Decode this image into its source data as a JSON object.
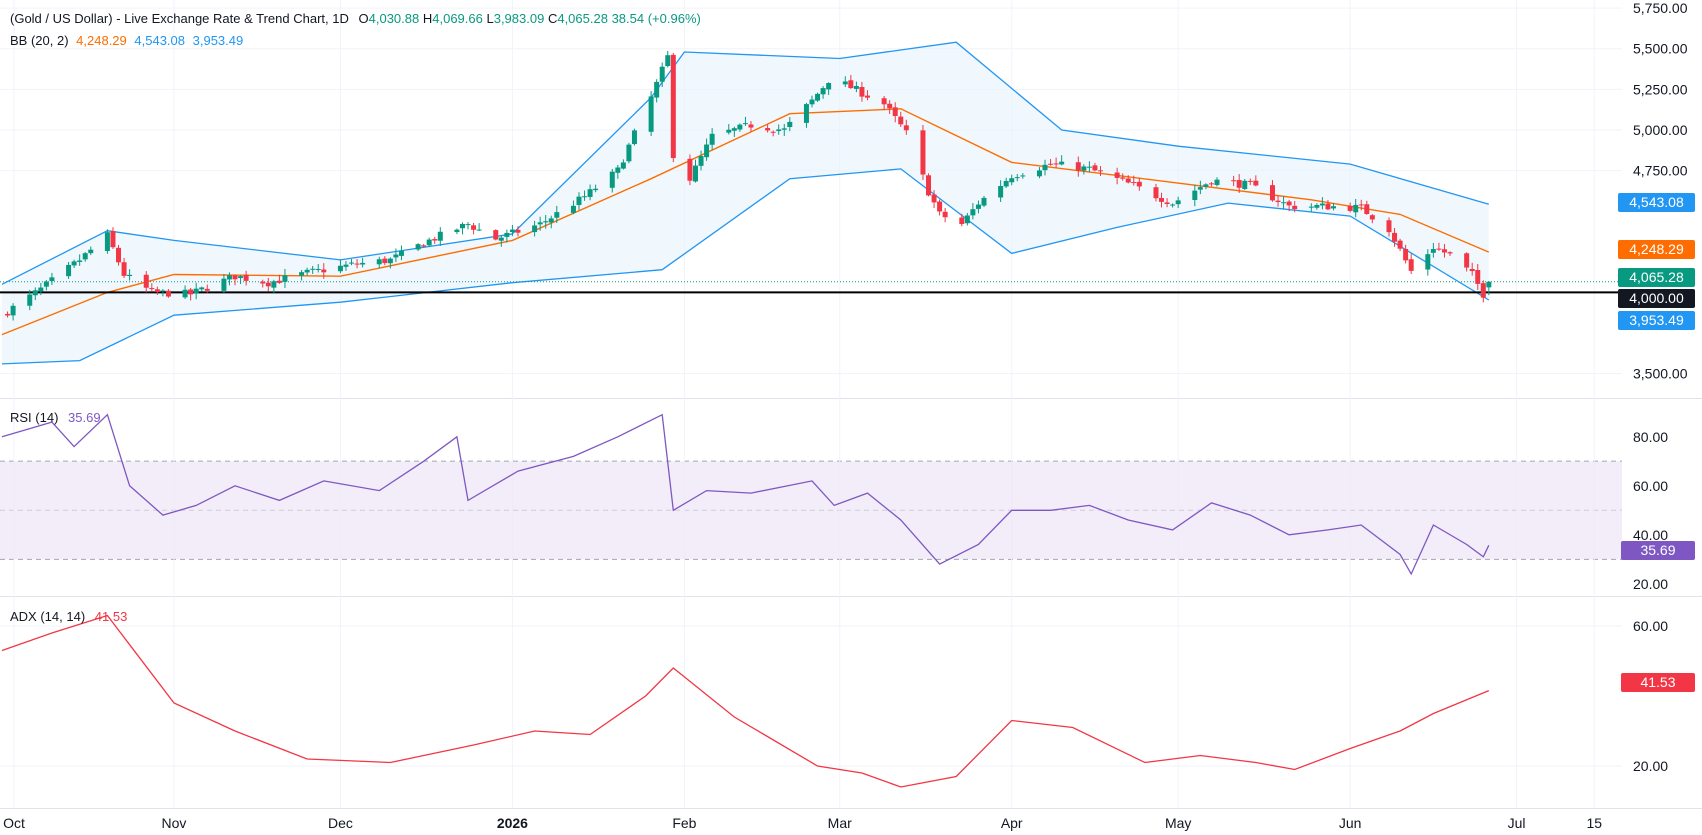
{
  "header": {
    "symbol_title": "(Gold / US Dollar) - Live Exchange Rate & Trend Chart, 1D",
    "ohlc": {
      "o_label": "O",
      "o": "4,030.88",
      "h_label": "H",
      "h": "4,069.66",
      "l_label": "L",
      "l": "3,983.09",
      "c_label": "C",
      "c": "4,065.28",
      "change": "38.54 (+0.96%)"
    },
    "bb_label": "BB (20, 2)",
    "bb_values": {
      "basis": "4,248.29",
      "upper": "4,543.08",
      "lower": "3,953.49"
    },
    "rsi_label": "RSI (14)",
    "rsi_value": "35.69",
    "adx_label": "ADX (14, 14)",
    "adx_value": "41.53"
  },
  "colors": {
    "up": "#089981",
    "down": "#f23645",
    "basis": "#ff6d00",
    "band": "#2196f3",
    "band_fill": "#e3f2fd",
    "rsi": "#7e57c2",
    "rsi_fill": "#ede7f6",
    "adx": "#f23645",
    "axis_text": "#131722",
    "grid": "#f0f3fa",
    "level": "#000000"
  },
  "price_axis": {
    "ticks": [
      "5,750.00",
      "5,500.00",
      "5,250.00",
      "5,000.00",
      "4,750.00",
      "3,500.00"
    ]
  },
  "rsi_axis": {
    "ticks": [
      "80.00",
      "60.00",
      "40.00",
      "20.00"
    ]
  },
  "adx_axis": {
    "ticks": [
      "60.00",
      "20.00"
    ]
  },
  "time_axis": {
    "labels": [
      {
        "label": "Oct",
        "bold": false
      },
      {
        "label": "Nov",
        "bold": false
      },
      {
        "label": "Dec",
        "bold": false
      },
      {
        "label": "2026",
        "bold": true
      },
      {
        "label": "Feb",
        "bold": false
      },
      {
        "label": "Mar",
        "bold": false
      },
      {
        "label": "Apr",
        "bold": false
      },
      {
        "label": "May",
        "bold": false
      },
      {
        "label": "Jun",
        "bold": false
      },
      {
        "label": "Jul",
        "bold": false
      },
      {
        "label": "15",
        "bold": false
      }
    ]
  },
  "price_badges": [
    {
      "label": "4,543.08",
      "color": "#2196f3"
    },
    {
      "label": "4,248.29",
      "color": "#ff6d00"
    },
    {
      "label": "4,065.28",
      "color": "#089981"
    },
    {
      "label": "4,000.00",
      "color": "#131722"
    },
    {
      "label": "3,953.49",
      "color": "#2196f3"
    }
  ],
  "chart_data": [
    {
      "type": "candlestick",
      "title": "(Gold / US Dollar) - Live Exchange Rate & Trend Chart, 1D",
      "x_range": [
        "2025-10-01",
        "2026-07-20"
      ],
      "ylim": [
        3350,
        5800
      ],
      "horizontal_level": 4000,
      "last_candle": {
        "open": 4030.88,
        "high": 4069.66,
        "low": 3983.09,
        "close": 4065.28
      },
      "close_series": [
        [
          "2025-10-01",
          3860
        ],
        [
          "2025-10-08",
          4020
        ],
        [
          "2025-10-15",
          4200
        ],
        [
          "2025-10-20",
          4350
        ],
        [
          "2025-10-23",
          4110
        ],
        [
          "2025-10-28",
          4000
        ],
        [
          "2025-11-04",
          3990
        ],
        [
          "2025-11-12",
          4100
        ],
        [
          "2025-11-18",
          4060
        ],
        [
          "2025-11-25",
          4120
        ],
        [
          "2025-12-03",
          4170
        ],
        [
          "2025-12-10",
          4200
        ],
        [
          "2025-12-17",
          4320
        ],
        [
          "2025-12-24",
          4420
        ],
        [
          "2025-12-29",
          4330
        ],
        [
          "2026-01-06",
          4420
        ],
        [
          "2026-01-14",
          4590
        ],
        [
          "2026-01-20",
          4750
        ],
        [
          "2026-01-26",
          5200
        ],
        [
          "2026-01-29",
          5450
        ],
        [
          "2026-01-30",
          4850
        ],
        [
          "2026-02-02",
          4700
        ],
        [
          "2026-02-06",
          4960
        ],
        [
          "2026-02-13",
          5030
        ],
        [
          "2026-02-19",
          5000
        ],
        [
          "2026-02-24",
          5180
        ],
        [
          "2026-02-28",
          5350
        ],
        [
          "2026-03-02",
          5280
        ],
        [
          "2026-03-09",
          5160
        ],
        [
          "2026-03-13",
          4980
        ],
        [
          "2026-03-17",
          4620
        ],
        [
          "2026-03-19",
          4480
        ],
        [
          "2026-03-23",
          4420
        ],
        [
          "2026-03-26",
          4550
        ],
        [
          "2026-04-01",
          4720
        ],
        [
          "2026-04-08",
          4790
        ],
        [
          "2026-04-15",
          4760
        ],
        [
          "2026-04-22",
          4670
        ],
        [
          "2026-04-30",
          4550
        ],
        [
          "2026-05-07",
          4690
        ],
        [
          "2026-05-14",
          4660
        ],
        [
          "2026-05-21",
          4530
        ],
        [
          "2026-05-28",
          4530
        ],
        [
          "2026-06-03",
          4520
        ],
        [
          "2026-06-08",
          4390
        ],
        [
          "2026-06-12",
          4130
        ],
        [
          "2026-06-16",
          4280
        ],
        [
          "2026-06-19",
          4230
        ],
        [
          "2026-06-23",
          4110
        ],
        [
          "2026-06-25",
          3990
        ],
        [
          "2026-06-26",
          4065.28
        ]
      ],
      "series": [
        {
          "name": "BB basis",
          "values": [
            [
              "2025-10-01",
              3740
            ],
            [
              "2025-10-20",
              4000
            ],
            [
              "2025-11-01",
              4110
            ],
            [
              "2025-12-01",
              4100
            ],
            [
              "2026-01-01",
              4320
            ],
            [
              "2026-01-26",
              4700
            ],
            [
              "2026-02-20",
              5100
            ],
            [
              "2026-03-12",
              5130
            ],
            [
              "2026-04-01",
              4800
            ],
            [
              "2026-04-20",
              4720
            ],
            [
              "2026-05-25",
              4570
            ],
            [
              "2026-06-10",
              4480
            ],
            [
              "2026-06-26",
              4248.29
            ]
          ]
        },
        {
          "name": "BB upper",
          "values": [
            [
              "2025-10-01",
              4050
            ],
            [
              "2025-10-20",
              4380
            ],
            [
              "2025-11-01",
              4320
            ],
            [
              "2025-12-01",
              4200
            ],
            [
              "2026-01-01",
              4360
            ],
            [
              "2026-01-26",
              5200
            ],
            [
              "2026-02-01",
              5480
            ],
            [
              "2026-03-01",
              5440
            ],
            [
              "2026-03-22",
              5540
            ],
            [
              "2026-04-10",
              5000
            ],
            [
              "2026-05-01",
              4900
            ],
            [
              "2026-06-01",
              4790
            ],
            [
              "2026-06-26",
              4543.08
            ]
          ]
        },
        {
          "name": "BB lower",
          "values": [
            [
              "2025-10-01",
              3560
            ],
            [
              "2025-10-15",
              3580
            ],
            [
              "2025-11-01",
              3860
            ],
            [
              "2025-12-01",
              3940
            ],
            [
              "2026-01-01",
              4060
            ],
            [
              "2026-01-28",
              4140
            ],
            [
              "2026-02-20",
              4700
            ],
            [
              "2026-03-12",
              4760
            ],
            [
              "2026-04-01",
              4240
            ],
            [
              "2026-04-20",
              4400
            ],
            [
              "2026-05-10",
              4550
            ],
            [
              "2026-06-01",
              4470
            ],
            [
              "2026-06-26",
              3953.49
            ]
          ]
        }
      ]
    },
    {
      "type": "line",
      "title": "RSI (14)",
      "ylim": [
        15,
        95
      ],
      "levels": [
        70,
        50,
        30
      ],
      "series": [
        {
          "name": "RSI (14)",
          "values": [
            [
              "2025-10-01",
              80
            ],
            [
              "2025-10-10",
              86
            ],
            [
              "2025-10-14",
              76
            ],
            [
              "2025-10-20",
              89
            ],
            [
              "2025-10-24",
              60
            ],
            [
              "2025-10-30",
              48
            ],
            [
              "2025-11-05",
              52
            ],
            [
              "2025-11-12",
              60
            ],
            [
              "2025-11-20",
              54
            ],
            [
              "2025-11-28",
              62
            ],
            [
              "2025-12-08",
              58
            ],
            [
              "2025-12-16",
              70
            ],
            [
              "2025-12-22",
              80
            ],
            [
              "2025-12-24",
              54
            ],
            [
              "2026-01-02",
              66
            ],
            [
              "2026-01-12",
              72
            ],
            [
              "2026-01-20",
              80
            ],
            [
              "2026-01-28",
              89
            ],
            [
              "2026-01-30",
              50
            ],
            [
              "2026-02-05",
              58
            ],
            [
              "2026-02-13",
              57
            ],
            [
              "2026-02-24",
              62
            ],
            [
              "2026-02-28",
              52
            ],
            [
              "2026-03-06",
              57
            ],
            [
              "2026-03-12",
              46
            ],
            [
              "2026-03-19",
              28
            ],
            [
              "2026-03-26",
              36
            ],
            [
              "2026-04-01",
              50
            ],
            [
              "2026-04-08",
              50
            ],
            [
              "2026-04-15",
              52
            ],
            [
              "2026-04-22",
              46
            ],
            [
              "2026-04-30",
              42
            ],
            [
              "2026-05-07",
              53
            ],
            [
              "2026-05-14",
              48
            ],
            [
              "2026-05-21",
              40
            ],
            [
              "2026-05-28",
              42
            ],
            [
              "2026-06-03",
              44
            ],
            [
              "2026-06-10",
              32
            ],
            [
              "2026-06-12",
              24
            ],
            [
              "2026-06-16",
              44
            ],
            [
              "2026-06-22",
              36
            ],
            [
              "2026-06-25",
              31
            ],
            [
              "2026-06-26",
              35.69
            ]
          ]
        }
      ]
    },
    {
      "type": "line",
      "title": "ADX (14, 14)",
      "ylim": [
        8,
        68
      ],
      "series": [
        {
          "name": "ADX (14, 14)",
          "values": [
            [
              "2025-10-01",
              53
            ],
            [
              "2025-10-10",
              58
            ],
            [
              "2025-10-20",
              63
            ],
            [
              "2025-11-01",
              38
            ],
            [
              "2025-11-12",
              30
            ],
            [
              "2025-11-25",
              22
            ],
            [
              "2025-12-10",
              21
            ],
            [
              "2025-12-25",
              26
            ],
            [
              "2026-01-05",
              30
            ],
            [
              "2026-01-15",
              29
            ],
            [
              "2026-01-25",
              40
            ],
            [
              "2026-01-30",
              48
            ],
            [
              "2026-02-10",
              34
            ],
            [
              "2026-02-25",
              20
            ],
            [
              "2026-03-05",
              18
            ],
            [
              "2026-03-12",
              14
            ],
            [
              "2026-03-22",
              17
            ],
            [
              "2026-04-01",
              33
            ],
            [
              "2026-04-12",
              31
            ],
            [
              "2026-04-25",
              21
            ],
            [
              "2026-05-05",
              23
            ],
            [
              "2026-05-15",
              21
            ],
            [
              "2026-05-22",
              19
            ],
            [
              "2026-06-01",
              25
            ],
            [
              "2026-06-10",
              30
            ],
            [
              "2026-06-16",
              35
            ],
            [
              "2026-06-26",
              41.53
            ]
          ]
        }
      ]
    }
  ]
}
